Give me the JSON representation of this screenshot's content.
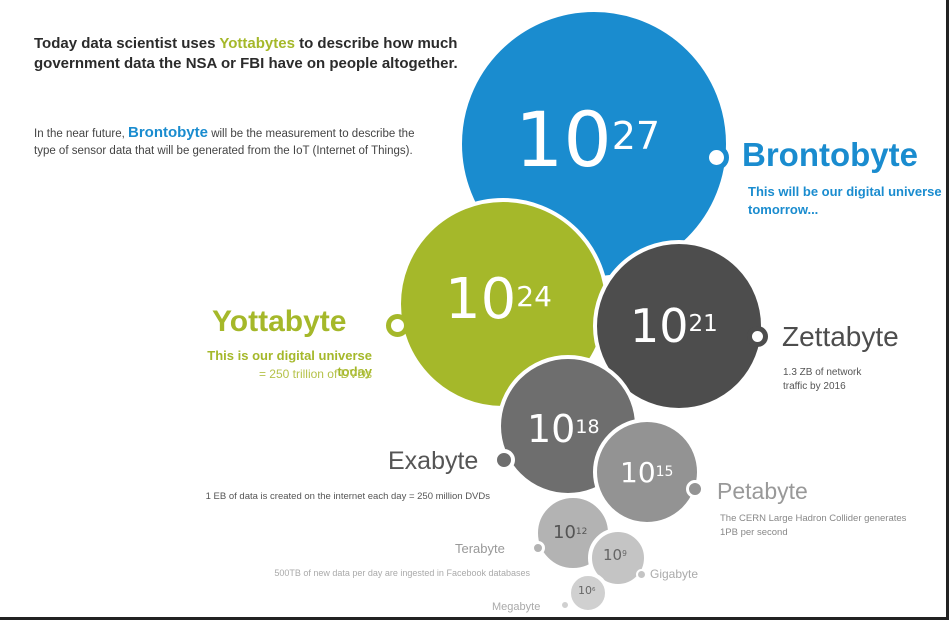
{
  "intro": {
    "line1_pre": "Today data scientist uses ",
    "line1_highlight": "Yottabytes",
    "line1_post": " to describe how much government data the NSA or FBI have on people altogether.",
    "line2_pre": "In the near future, ",
    "line2_highlight": "Brontobyte",
    "line2_post": " will be the measurement to describe the type of sensor data that will be generated from the IoT (Internet of Things)."
  },
  "units": [
    {
      "id": "brontobyte",
      "base": "10",
      "exp": "27",
      "name": "Brontobyte",
      "desc": "This will be our digital universe tomorrow...",
      "color": "#1a8ccf"
    },
    {
      "id": "yottabyte",
      "base": "10",
      "exp": "24",
      "name": "Yottabyte",
      "desc": "This is our digital universe today",
      "desc2": "= 250 trillion of DVDs",
      "color": "#a5b82a"
    },
    {
      "id": "zettabyte",
      "base": "10",
      "exp": "21",
      "name": "Zettabyte",
      "desc": "1.3 ZB of network traffic by 2016",
      "color": "#4d4d4d"
    },
    {
      "id": "exabyte",
      "base": "10",
      "exp": "18",
      "name": "Exabyte",
      "desc": "1 EB of data is created on the internet each day = 250 million DVDs",
      "color": "#6e6e6e"
    },
    {
      "id": "petabyte",
      "base": "10",
      "exp": "15",
      "name": "Petabyte",
      "desc": "The CERN Large Hadron Collider generates 1PB per second",
      "color": "#939393"
    },
    {
      "id": "terabyte",
      "base": "10",
      "exp": "12",
      "name": "Terabyte",
      "desc": "500TB of new data per day are ingested in Facebook databases",
      "color": "#b3b3b3"
    },
    {
      "id": "gigabyte",
      "base": "10",
      "exp": "9",
      "name": "Gigabyte",
      "desc": "",
      "color": "#c4c4c4"
    },
    {
      "id": "megabyte",
      "base": "10",
      "exp": "6",
      "name": "Megabyte",
      "desc": "",
      "color": "#d0d0d0"
    }
  ]
}
